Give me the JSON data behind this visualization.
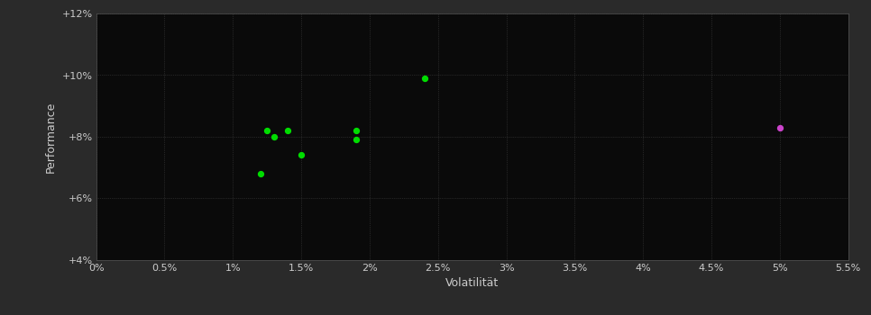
{
  "background_color": "#2a2a2a",
  "plot_bg_color": "#0a0a0a",
  "grid_color": "#404040",
  "grid_style": ":",
  "xlabel": "Volatilität",
  "ylabel": "Performance",
  "xlim": [
    0.0,
    0.055
  ],
  "ylim": [
    0.04,
    0.12
  ],
  "xticks": [
    0.0,
    0.005,
    0.01,
    0.015,
    0.02,
    0.025,
    0.03,
    0.035,
    0.04,
    0.045,
    0.05,
    0.055
  ],
  "yticks": [
    0.04,
    0.06,
    0.08,
    0.1,
    0.12
  ],
  "ytick_labels": [
    "+4%",
    "+6%",
    "+8%",
    "+10%",
    "+12%"
  ],
  "xtick_labels": [
    "0%",
    "0.5%",
    "1%",
    "1.5%",
    "2%",
    "2.5%",
    "3%",
    "3.5%",
    "4%",
    "4.5%",
    "5%",
    "5.5%"
  ],
  "green_points": [
    [
      0.0125,
      0.082
    ],
    [
      0.013,
      0.08
    ],
    [
      0.014,
      0.082
    ],
    [
      0.019,
      0.082
    ],
    [
      0.019,
      0.079
    ],
    [
      0.015,
      0.074
    ],
    [
      0.012,
      0.068
    ],
    [
      0.024,
      0.099
    ]
  ],
  "magenta_points": [
    [
      0.05,
      0.083
    ]
  ],
  "green_color": "#00dd00",
  "magenta_color": "#cc44cc",
  "point_size": 18,
  "tick_color": "#cccccc",
  "label_color": "#cccccc",
  "label_fontsize": 9,
  "tick_fontsize": 8
}
